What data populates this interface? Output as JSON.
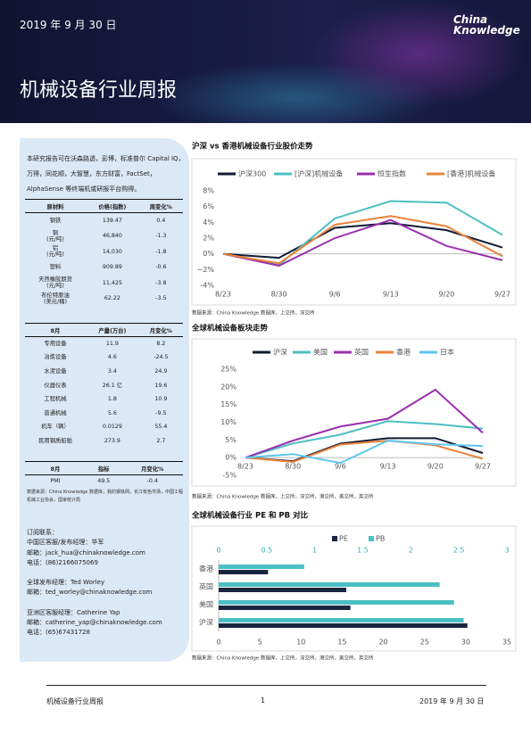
{
  "header": {
    "date": "2019 年 9 月 30 日",
    "logo": [
      "China",
      "Knowledge"
    ],
    "title": "机械设备行业周报"
  },
  "sidebar": {
    "intro": "本研究报告可在沃森路透，彭博，标准普尔 Capital IQ，万得，同花顺，大智慧，东方财富，FactSet，AlphaSense 等终端机或研报平台购得。",
    "tables": [
      {
        "columns": [
          "原材料",
          "价格(指数)",
          "周变化%"
        ],
        "rows": [
          [
            "钢铁",
            "139.47",
            "0.4"
          ],
          [
            "铜\n(元/吨)",
            "46,840",
            "-1.3"
          ],
          [
            "铝\n(元/吨)",
            "14,030",
            "-1.8"
          ],
          [
            "塑料",
            "909.89",
            "-0.6"
          ],
          [
            "天然橡胶期货\n(元/吨)",
            "11,425",
            "-3.8"
          ],
          [
            "布伦特原油\n(美元/桶)",
            "62.22",
            "-3.5"
          ]
        ]
      },
      {
        "columns": [
          "8月",
          "产量(万台)",
          "月变化%"
        ],
        "rows": [
          [
            "专用设备",
            "11.9",
            "8.2"
          ],
          [
            "冶炼设备",
            "4.6",
            "-24.5"
          ],
          [
            "水泥设备",
            "3.4",
            "24.9"
          ],
          [
            "仪器仪表",
            "26.1 亿",
            "19.6"
          ],
          [
            "工程机械",
            "1.8",
            "10.9"
          ],
          [
            "普通机械",
            "5.6",
            "-9.5"
          ],
          [
            "机车（辆）",
            "0.0129",
            "55.4"
          ],
          [
            "民用钢质船舶",
            "273.9",
            "2.7"
          ]
        ]
      },
      {
        "columns": [
          "8月",
          "指标",
          "月变化%"
        ],
        "rows": [
          [
            "PMI",
            "49.5",
            "-0.4"
          ]
        ]
      }
    ],
    "note": "数据来源：China Knowledge 数据库，我的钢铁网，长江有色市场，中国工程机械工业协会，国家统计局",
    "contacts": [
      [
        "订阅联系：",
        "中国区客服/发布经理：华军",
        "邮箱：jack_hua@chinaknowledge.com",
        "电话：(86)2166075069"
      ],
      [
        "全球发布经理：Ted Worley",
        "邮箱：ted_worley@chinaknowledge.com"
      ],
      [
        "亚洲区客服经理：Catherine Yap",
        "邮箱：catherine_yap@chinaknowledge.com",
        "电话：(65)67431728"
      ]
    ]
  },
  "chart_data": [
    {
      "type": "line",
      "title": "沪深 vs 香港机械设备行业股价走势",
      "categories": [
        "8/23",
        "8/30",
        "9/6",
        "9/13",
        "9/20",
        "9/27"
      ],
      "ylim": [
        -4,
        8
      ],
      "yticks": [
        {
          "value": -4,
          "label": "-4%"
        },
        {
          "value": -2,
          "label": "−2%"
        },
        {
          "value": 0,
          "label": "0%"
        },
        {
          "value": 2,
          "label": "2%"
        },
        {
          "value": 4,
          "label": "4%"
        },
        {
          "value": 6,
          "label": "6%"
        },
        {
          "value": 8,
          "label": "8%"
        }
      ],
      "grid": false,
      "series": [
        {
          "name": "沪深300",
          "color": "#111a33",
          "values": [
            0,
            -0.5,
            3.3,
            3.9,
            3.0,
            0.8
          ]
        },
        {
          "name": "[沪深]机械设备",
          "color": "#4bbfc3",
          "values": [
            0,
            -1.4,
            4.5,
            6.7,
            6.5,
            2.4
          ]
        },
        {
          "name": "恒生指数",
          "color": "#9b2fae",
          "values": [
            0,
            -1.5,
            2.0,
            4.3,
            1.0,
            -0.8
          ]
        },
        {
          "name": "[香港]机械设备",
          "color": "#e8843c",
          "values": [
            0,
            -1.2,
            3.7,
            4.8,
            3.5,
            -0.3
          ]
        }
      ],
      "source": "数据来源：China Knowledge 数据库，上交所，深交所"
    },
    {
      "type": "line",
      "title": "全球机械设备板块走势",
      "categories": [
        "8/23",
        "8/30",
        "9/6",
        "9/13",
        "9/20",
        "9/27"
      ],
      "ylim": [
        -5,
        25
      ],
      "yticks": [
        {
          "value": -5,
          "label": "-5%"
        },
        {
          "value": 0,
          "label": "0%"
        },
        {
          "value": 5,
          "label": "5%"
        },
        {
          "value": 10,
          "label": "10%"
        },
        {
          "value": 15,
          "label": "15%"
        },
        {
          "value": 20,
          "label": "20%"
        },
        {
          "value": 25,
          "label": "25%"
        }
      ],
      "grid": false,
      "series": [
        {
          "name": "沪深",
          "color": "#111a33",
          "values": [
            0,
            -1.0,
            4.0,
            5.5,
            5.5,
            1.3
          ]
        },
        {
          "name": "美国",
          "color": "#4bbfc3",
          "values": [
            0,
            4.0,
            6.5,
            10.3,
            9.5,
            8.2
          ]
        },
        {
          "name": "英国",
          "color": "#9b2fae",
          "values": [
            0,
            4.8,
            8.8,
            11.0,
            19.2,
            7.0
          ]
        },
        {
          "name": "香港",
          "color": "#e8843c",
          "values": [
            0,
            -1.2,
            3.7,
            4.8,
            3.5,
            -0.3
          ]
        },
        {
          "name": "日本",
          "color": "#5cc6f2",
          "values": [
            0,
            1.0,
            -1.5,
            4.8,
            3.8,
            3.3
          ]
        }
      ],
      "source": "数据来源：China Knowledge 数据库，上交所，深交所，港交所，美交所，英交所"
    },
    {
      "type": "hbar",
      "title": "全球机械设备行业 PE 和 PB 对比",
      "categories": [
        "香港",
        "英国",
        "美国",
        "沪深"
      ],
      "xlim": [
        0,
        35
      ],
      "xticks": [
        0,
        5,
        10,
        15,
        20,
        25,
        30,
        35
      ],
      "x2lim": [
        0,
        3
      ],
      "x2ticks": [
        0,
        0.5,
        1,
        1.5,
        2,
        2.5,
        3
      ],
      "series": [
        {
          "name": "PE",
          "color": "#1a2540",
          "values": [
            6,
            15.5,
            16,
            30.2
          ]
        },
        {
          "name": "PB",
          "color": "#4bbfc3",
          "axis": "x2",
          "values": [
            0.89,
            2.3,
            2.45,
            2.55
          ]
        }
      ],
      "source": "数据来源：China Knowledge 数据库，上交所，深交所，港交所，美交所，英交所"
    }
  ],
  "footer": {
    "left": "机械设备行业周报",
    "page": "1",
    "right": "2019 年 9 月 30 日"
  }
}
